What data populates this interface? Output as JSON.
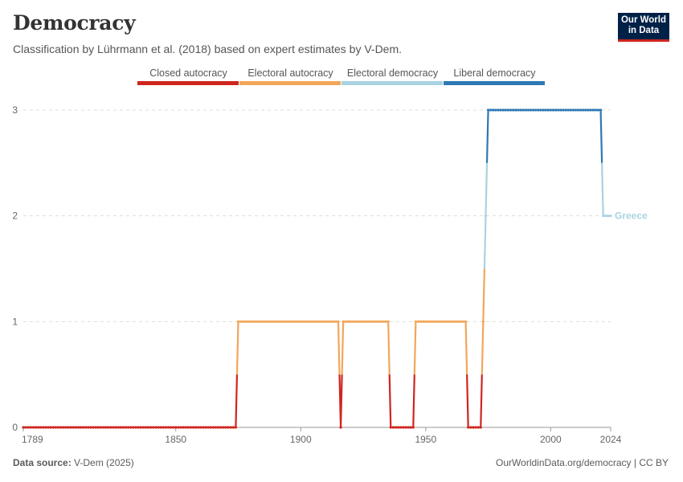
{
  "header": {
    "title": "Democracy",
    "subtitle": "Classification by Lührmann et al. (2018) based on expert estimates by V-Dem."
  },
  "logo": {
    "line1": "Our World",
    "line2": "in Data"
  },
  "footer": {
    "source_label": "Data source:",
    "source_value": "V-Dem (2025)",
    "link": "OurWorldinData.org/democracy | CC BY"
  },
  "chart_data": {
    "type": "line",
    "xlim": [
      1789,
      2024
    ],
    "ylim": [
      0,
      3
    ],
    "x_ticks": [
      1789,
      1850,
      1900,
      1950,
      2000,
      2024
    ],
    "y_ticks": [
      0,
      1,
      2,
      3
    ],
    "grid": "horizontal dashed",
    "legend_position": "top",
    "legend": [
      {
        "name": "Closed autocracy",
        "color": "#ce261e"
      },
      {
        "name": "Electoral autocracy",
        "color": "#f2a65a"
      },
      {
        "name": "Electoral democracy",
        "color": "#a8d3e0"
      },
      {
        "name": "Liberal democracy",
        "color": "#2e78b5"
      }
    ],
    "series": [
      {
        "name": "Greece",
        "label_color": "#a8d3e0",
        "segments": [
          {
            "start": 1789,
            "end": 1874,
            "value": 0
          },
          {
            "start": 1875,
            "end": 1915,
            "value": 1
          },
          {
            "start": 1916,
            "end": 1916,
            "value": 0
          },
          {
            "start": 1917,
            "end": 1935,
            "value": 1
          },
          {
            "start": 1936,
            "end": 1945,
            "value": 0
          },
          {
            "start": 1946,
            "end": 1966,
            "value": 1
          },
          {
            "start": 1967,
            "end": 1972,
            "value": 0
          },
          {
            "start": 1973,
            "end": 1973,
            "value": 1
          },
          {
            "start": 1974,
            "end": 1974,
            "value": 2
          },
          {
            "start": 1975,
            "end": 2020,
            "value": 3
          },
          {
            "start": 2021,
            "end": 2024,
            "value": 2
          }
        ]
      }
    ]
  }
}
